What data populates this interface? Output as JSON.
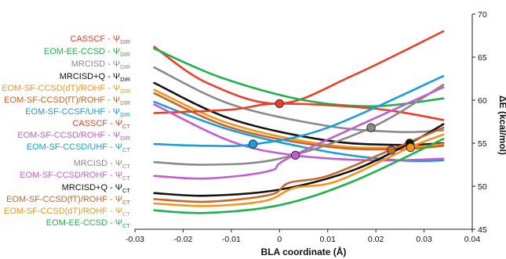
{
  "chart_data": {
    "type": "line",
    "title": "",
    "xlabel": "BLA coordinate (Å)",
    "ylabel": "ΔE (kcal/mol)",
    "xlim": [
      -0.03,
      0.04
    ],
    "ylim": [
      45,
      70
    ],
    "x_ticks": [
      "-0.03",
      "-0.02",
      "-0.01",
      "0",
      "0.01",
      "0.02",
      "0.03",
      "0.04"
    ],
    "y_ticks": [
      "45",
      "50",
      "55",
      "60",
      "65",
      "70"
    ],
    "legend_placement": "left",
    "series": [
      {
        "name": "CASSCF - Ψ",
        "sub": "DIR",
        "color": "#e8412b",
        "x": [
          -0.026,
          -0.015,
          0.0,
          0.015,
          0.034
        ],
        "y": [
          66.2,
          62.0,
          59.6,
          62.8,
          68.0
        ]
      },
      {
        "name": "EOM-EE-CCSD - Ψ",
        "sub": "DIR",
        "color": "#1fb14a",
        "x": [
          -0.026,
          -0.012,
          0.005,
          0.02,
          0.034
        ],
        "y": [
          66.0,
          62.6,
          60.0,
          59.3,
          60.2
        ]
      },
      {
        "name": "MRCISD - Ψ",
        "sub": "DIR",
        "color": "#8a8a8a",
        "x": [
          -0.026,
          -0.01,
          0.01,
          0.025,
          0.034
        ],
        "y": [
          63.8,
          59.5,
          57.0,
          56.3,
          56.5
        ]
      },
      {
        "name": "MRCISD+Q - Ψ",
        "sub": "DIR",
        "color": "#111111",
        "x": [
          -0.026,
          -0.01,
          0.01,
          0.025,
          0.034
        ],
        "y": [
          62.0,
          57.8,
          55.3,
          54.8,
          55.0
        ]
      },
      {
        "name": "EOM-SF-CCSD(dT)/ROHF - Ψ",
        "sub": "DIR",
        "color": "#f7941d",
        "x": [
          -0.026,
          -0.01,
          0.01,
          0.025,
          0.034
        ],
        "y": [
          61.2,
          57.2,
          54.8,
          54.5,
          54.9
        ]
      },
      {
        "name": "EOM-SF-CCSD(fT)/ROHF - Ψ",
        "sub": "DIR",
        "color": "#c8662a",
        "x": [
          -0.026,
          -0.01,
          0.01,
          0.025,
          0.034
        ],
        "y": [
          60.8,
          56.8,
          54.6,
          54.3,
          54.7
        ]
      },
      {
        "name": "EOM-SF-CCSF/UHF - Ψ",
        "sub": "DIR",
        "color": "#1a9ed9",
        "x": [
          -0.026,
          -0.01,
          0.01,
          0.025,
          0.034
        ],
        "y": [
          59.8,
          56.5,
          54.0,
          53.0,
          53.0
        ]
      },
      {
        "name": "CASSCF - Ψ",
        "sub": "CT",
        "color": "#e8412b",
        "x": [
          -0.026,
          -0.01,
          0.0,
          0.02,
          0.034
        ],
        "y": [
          58.5,
          58.9,
          59.6,
          59.0,
          57.7
        ]
      },
      {
        "name": "EOM-SF-CCSD/ROHF - Ψ",
        "sub": "DIR",
        "color": "#c15ecf",
        "x": [
          -0.026,
          -0.01,
          0.003,
          0.02,
          0.034
        ],
        "y": [
          59.5,
          55.2,
          53.6,
          53.0,
          53.2
        ]
      },
      {
        "name": "EOM-SF-CCSD/UHF - Ψ",
        "sub": "CT",
        "color": "#1a9ed9",
        "x": [
          -0.026,
          -0.015,
          -0.005,
          0.01,
          0.034
        ],
        "y": [
          54.9,
          54.7,
          54.9,
          56.8,
          62.8
        ]
      },
      {
        "name": "MRCISD - Ψ",
        "sub": "CT",
        "color": "#8a8a8a",
        "x": [
          -0.026,
          -0.015,
          0.0,
          0.019,
          0.034
        ],
        "y": [
          52.8,
          52.5,
          53.2,
          56.8,
          61.8
        ]
      },
      {
        "name": "EOM-SF-CCSD/ROHF - Ψ",
        "sub": "CT",
        "color": "#c15ecf",
        "x": [
          -0.026,
          -0.015,
          -0.002,
          0.003,
          0.034
        ],
        "y": [
          51.2,
          50.9,
          51.8,
          53.6,
          61.5
        ]
      },
      {
        "name": "MRCISD+Q - Ψ",
        "sub": "CT",
        "color": "#111111",
        "x": [
          -0.026,
          -0.015,
          0.0,
          0.015,
          0.027,
          0.034
        ],
        "y": [
          49.2,
          48.9,
          49.6,
          51.8,
          55.0,
          57.2
        ]
      },
      {
        "name": "EOM-SF-CCSD(fT)/ROHF - Ψ",
        "sub": "CT",
        "color": "#c8662a",
        "x": [
          -0.026,
          -0.015,
          -0.002,
          0.002,
          0.01,
          0.023,
          0.034
        ],
        "y": [
          48.5,
          48.2,
          49.0,
          50.4,
          51.2,
          54.2,
          56.8
        ]
      },
      {
        "name": "EOM-SF-CCSD(dT)/ROHF - Ψ",
        "sub": "CT",
        "color": "#f7941d",
        "x": [
          -0.026,
          -0.015,
          -0.003,
          0.003,
          0.012,
          0.027,
          0.034
        ],
        "y": [
          48.0,
          47.7,
          48.3,
          49.8,
          50.6,
          54.5,
          56.0
        ]
      },
      {
        "name": "EOM-EE-CCSD - Ψ",
        "sub": "CT",
        "color": "#1fb14a",
        "x": [
          -0.026,
          -0.015,
          0.0,
          0.015,
          0.034
        ],
        "y": [
          47.2,
          46.9,
          47.8,
          50.5,
          55.5
        ]
      }
    ],
    "crossing_points": [
      {
        "x": 0.0,
        "y": 59.6,
        "color": "#e8412b"
      },
      {
        "x": 0.019,
        "y": 56.8,
        "color": "#8a8a8a"
      },
      {
        "x": -0.0055,
        "y": 54.9,
        "color": "#1a9ed9"
      },
      {
        "x": 0.0033,
        "y": 53.6,
        "color": "#c15ecf"
      },
      {
        "x": 0.0232,
        "y": 54.2,
        "color": "#c8662a"
      },
      {
        "x": 0.027,
        "y": 55.0,
        "color": "#111111"
      },
      {
        "x": 0.0272,
        "y": 54.5,
        "color": "#f7941d"
      }
    ]
  }
}
